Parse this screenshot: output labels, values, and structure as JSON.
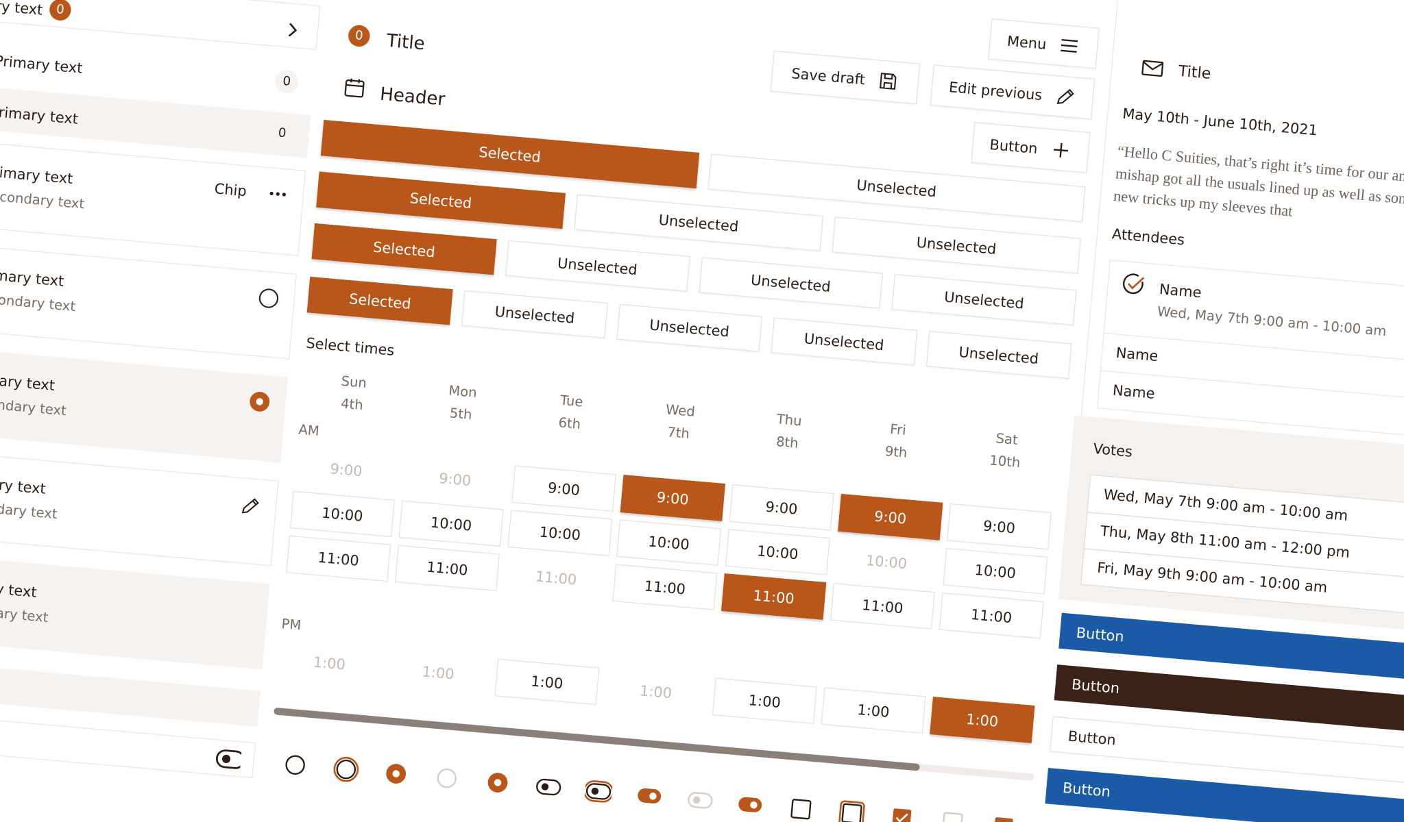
{
  "list": {
    "items": [
      {
        "primary": "Primary text",
        "badge": "0"
      },
      {
        "primary": "Primary text",
        "meta": "0"
      },
      {
        "primary": "Primary text",
        "meta": "0"
      },
      {
        "primary": "Primary text",
        "secondary": "Secondary text",
        "chip": "Chip"
      },
      {
        "primary": "Primary text",
        "secondary": "Secondary text"
      },
      {
        "primary": "Primary text",
        "secondary": "Secondary text"
      },
      {
        "primary": "Primary text",
        "secondary": "Secondary text"
      },
      {
        "primary": "Primary text",
        "secondary": "Secondary text"
      }
    ]
  },
  "toolbar": {
    "badge": "0",
    "title": "Title",
    "header": "Header",
    "menu": "Menu",
    "save": "Save draft",
    "edit": "Edit previous",
    "button": "Button"
  },
  "segments": [
    {
      "options": [
        "Selected",
        "Unselected"
      ],
      "selected": 0
    },
    {
      "options": [
        "Selected",
        "Unselected",
        "Unselected"
      ],
      "selected": 0
    },
    {
      "options": [
        "Selected",
        "Unselected",
        "Unselected",
        "Unselected"
      ],
      "selected": 0
    },
    {
      "options": [
        "Selected",
        "Unselected",
        "Unselected",
        "Unselected",
        "Unselected"
      ],
      "selected": 0
    }
  ],
  "scheduler": {
    "label": "Select times",
    "periods": [
      {
        "label": "AM",
        "times": [
          "9:00",
          "10:00",
          "11:00"
        ]
      },
      {
        "label": "PM",
        "times": [
          "1:00"
        ]
      }
    ],
    "days": [
      {
        "day": "Sun",
        "date": "4th",
        "slots": [
          "disabled",
          "open",
          "open",
          "disabled"
        ]
      },
      {
        "day": "Mon",
        "date": "5th",
        "slots": [
          "disabled",
          "open",
          "open",
          "disabled"
        ]
      },
      {
        "day": "Tue",
        "date": "6th",
        "slots": [
          "open",
          "open",
          "disabled",
          "open"
        ]
      },
      {
        "day": "Wed",
        "date": "7th",
        "slots": [
          "selected",
          "open",
          "open",
          "disabled"
        ]
      },
      {
        "day": "Thu",
        "date": "8th",
        "slots": [
          "open",
          "open",
          "selected",
          "open"
        ]
      },
      {
        "day": "Fri",
        "date": "9th",
        "slots": [
          "selected",
          "disabled",
          "open",
          "open"
        ]
      },
      {
        "day": "Sat",
        "date": "10th",
        "slots": [
          "open",
          "open",
          "open",
          "selected"
        ]
      }
    ],
    "progress": 85
  },
  "event": {
    "title": "Title",
    "dates": "May 10th - June 10th, 2021",
    "message": "“Hello C Suities, that’s right it’s time for our annual boating mishap got all the usuals lined up as well as some brand new tricks up my sleeves that",
    "attendees_label": "Attendees",
    "attendees": [
      {
        "name": "Name",
        "time": "Wed, May 7th 9:00 am - 10:00 am"
      },
      {
        "name": "Name"
      },
      {
        "name": "Name"
      }
    ],
    "votes_label": "Votes",
    "votes": [
      "Wed, May 7th 9:00 am - 10:00 am",
      "Thu, May 8th 11:00 am - 12:00 pm",
      "Fri, May 9th 9:00 am - 10:00 am"
    ]
  },
  "actions": [
    {
      "label": "Button",
      "style": "primary"
    },
    {
      "label": "Button",
      "style": "dark"
    },
    {
      "label": "Button",
      "style": "outline"
    },
    {
      "label": "Button",
      "style": "primary"
    }
  ]
}
